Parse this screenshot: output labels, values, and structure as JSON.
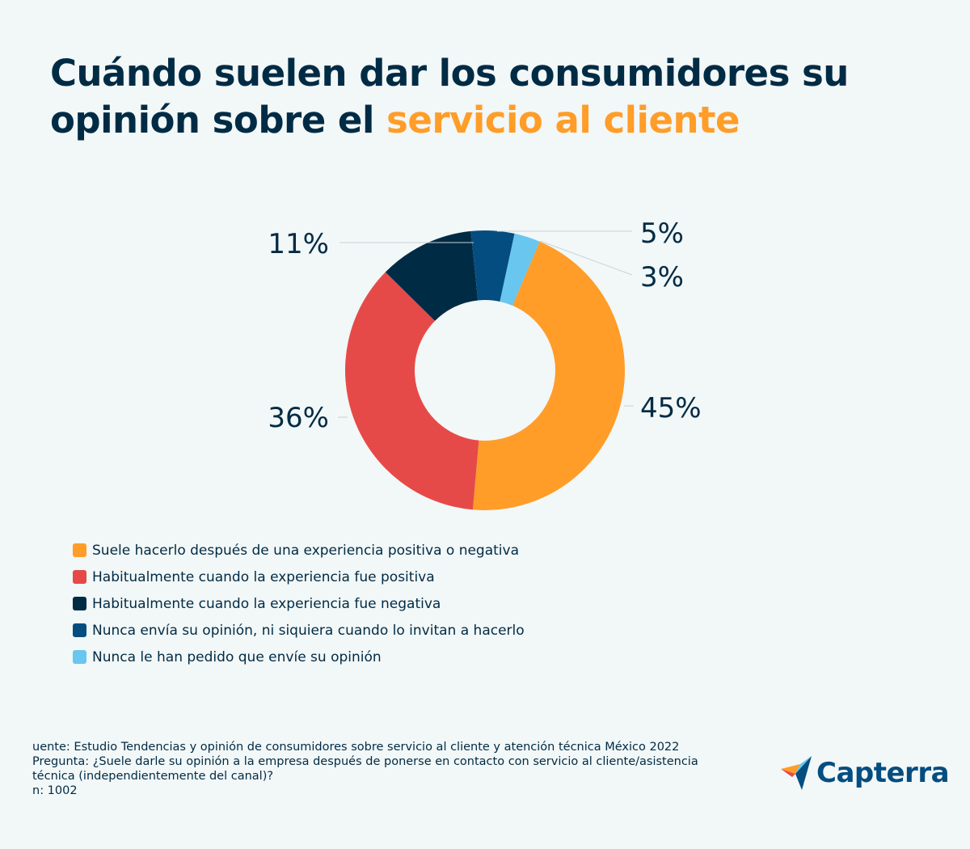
{
  "title": {
    "part1": "Cuándo suelen dar los consumidores su opinión sobre el ",
    "highlight": "servicio al cliente"
  },
  "chart_data": {
    "type": "pie",
    "variant": "donut",
    "categories": [
      "Suele hacerlo después de una experiencia positiva o negativa",
      "Habitualmente cuando la experiencia fue positiva",
      "Habitualmente cuando la experiencia fue negativa",
      "Nunca envía su opinión, ni siquiera cuando lo invitan a hacerlo",
      "Nunca le han pedido que envíe su opinión"
    ],
    "values": [
      45,
      36,
      11,
      5,
      3
    ],
    "labels": [
      "45%",
      "36%",
      "11%",
      "5%",
      "3%"
    ],
    "colors": [
      "#ff9d28",
      "#e64a48",
      "#002b45",
      "#044d80",
      "#68c6ef"
    ],
    "legend_position": "bottom-left"
  },
  "footer": {
    "source": "uente: Estudio Tendencias y opinión de consumidores sobre servicio al cliente y atención técnica México 2022",
    "question": "Pregunta: ¿Suele darle su opinión a la empresa después de ponerse en contacto con servicio al cliente/asistencia técnica (independientemente del canal)?",
    "n": "n: 1002"
  },
  "logo": {
    "text": "Capterra"
  }
}
